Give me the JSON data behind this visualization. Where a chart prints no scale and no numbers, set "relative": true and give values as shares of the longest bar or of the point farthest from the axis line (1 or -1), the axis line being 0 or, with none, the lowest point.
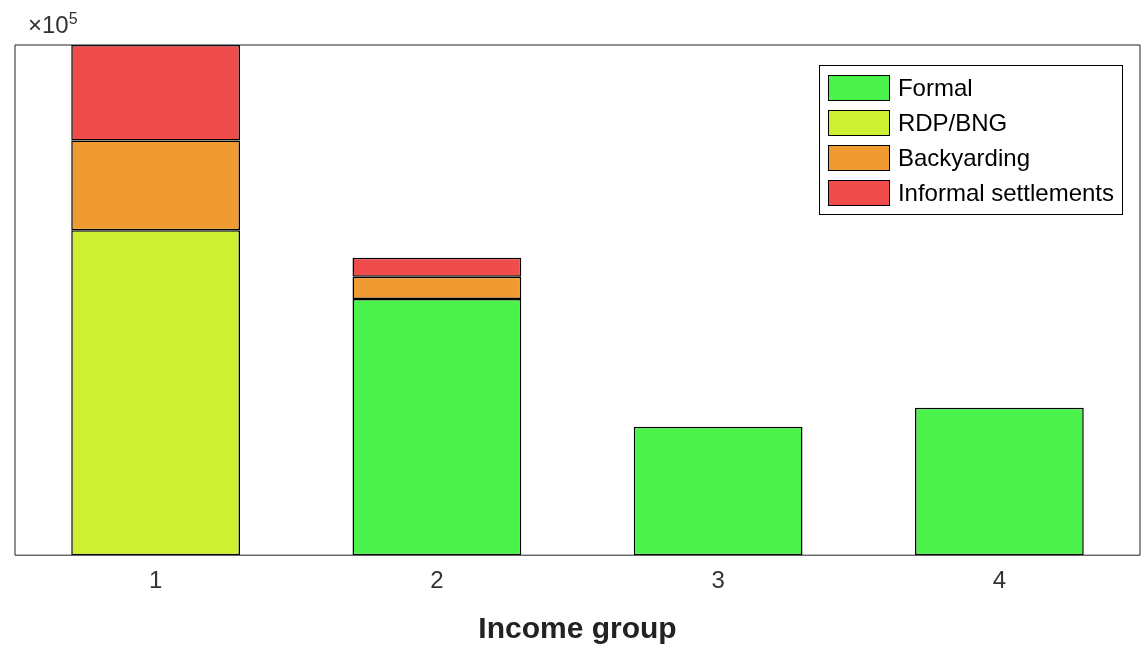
{
  "chart_data": {
    "type": "bar",
    "stacked": true,
    "relative": true,
    "xlabel": "Income group",
    "categories": [
      "1",
      "2",
      "3",
      "4"
    ],
    "series": [
      {
        "name": "Formal",
        "color": "#4cf24c",
        "values": [
          null,
          0.502,
          0.252,
          0.289
        ]
      },
      {
        "name": "RDP/BNG",
        "color": "#cdf032",
        "values": [
          0.637,
          null,
          null,
          null
        ]
      },
      {
        "name": "Backyarding",
        "color": "#f09a32",
        "values": [
          0.176,
          0.044,
          null,
          null
        ]
      },
      {
        "name": "Informal settlements",
        "color": "#f04c4c",
        "values": [
          0.187,
          0.037,
          null,
          null
        ]
      }
    ],
    "legend": "top right",
    "grid": false,
    "annotations": [
      "×10$^{5}$"
    ]
  }
}
